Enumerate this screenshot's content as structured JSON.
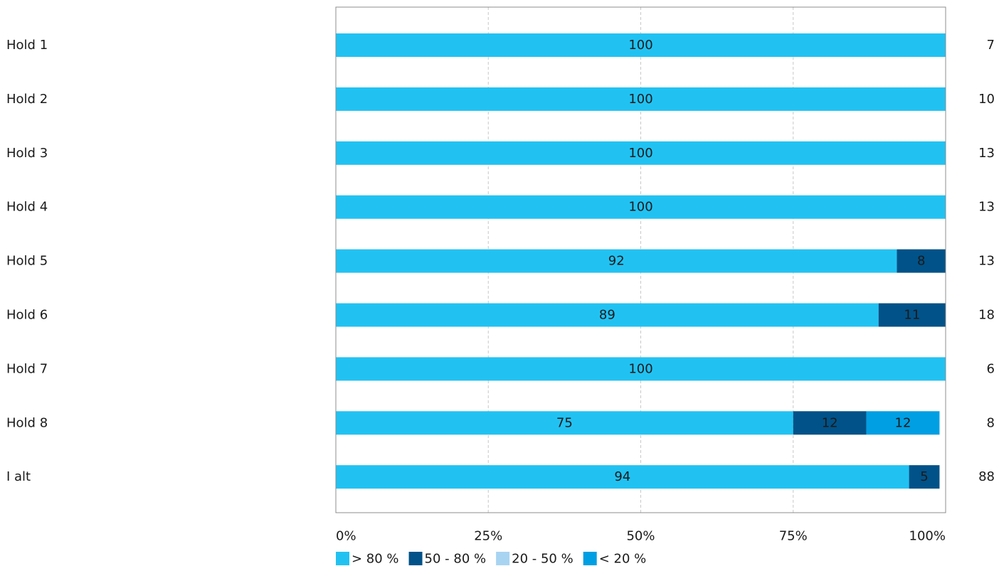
{
  "chart_data": {
    "type": "bar",
    "orientation": "horizontal",
    "stacked": true,
    "categories": [
      "Hold 1",
      "Hold 2",
      "Hold 3",
      "Hold 4",
      "Hold 5",
      "Hold 6",
      "Hold 7",
      "Hold 8",
      "I alt"
    ],
    "series": [
      {
        "name": "> 80 %",
        "color": "#21c2f2",
        "values": [
          100,
          100,
          100,
          100,
          92,
          89,
          100,
          75,
          94
        ]
      },
      {
        "name": "50 - 80 %",
        "color": "#005288",
        "values": [
          0,
          0,
          0,
          0,
          8,
          11,
          0,
          12,
          5
        ]
      },
      {
        "name": "20 - 50 %",
        "color": "#a8d4f2",
        "values": [
          0,
          0,
          0,
          0,
          0,
          0,
          0,
          0,
          0
        ]
      },
      {
        "name": "< 20 %",
        "color": "#009fe3",
        "values": [
          0,
          0,
          0,
          0,
          0,
          0,
          0,
          12,
          0
        ]
      }
    ],
    "bar_labels": [
      [
        "100",
        "",
        "",
        ""
      ],
      [
        "100",
        "",
        "",
        ""
      ],
      [
        "100",
        "",
        "",
        ""
      ],
      [
        "100",
        "",
        "",
        ""
      ],
      [
        "92",
        "8",
        "",
        ""
      ],
      [
        "89",
        "11",
        "",
        ""
      ],
      [
        "100",
        "",
        "",
        ""
      ],
      [
        "75",
        "12",
        "",
        "12"
      ],
      [
        "94",
        "5",
        "",
        ""
      ]
    ],
    "counts": [
      "7",
      "10",
      "13",
      "13",
      "13",
      "18",
      "6",
      "8",
      "88"
    ],
    "x_ticks": [
      "0%",
      "25%",
      "50%",
      "75%",
      "100%"
    ],
    "xlim": [
      0,
      100
    ],
    "grid": "vertical-dashed",
    "legend_position": "bottom",
    "title": "",
    "xlabel": "",
    "ylabel": ""
  }
}
